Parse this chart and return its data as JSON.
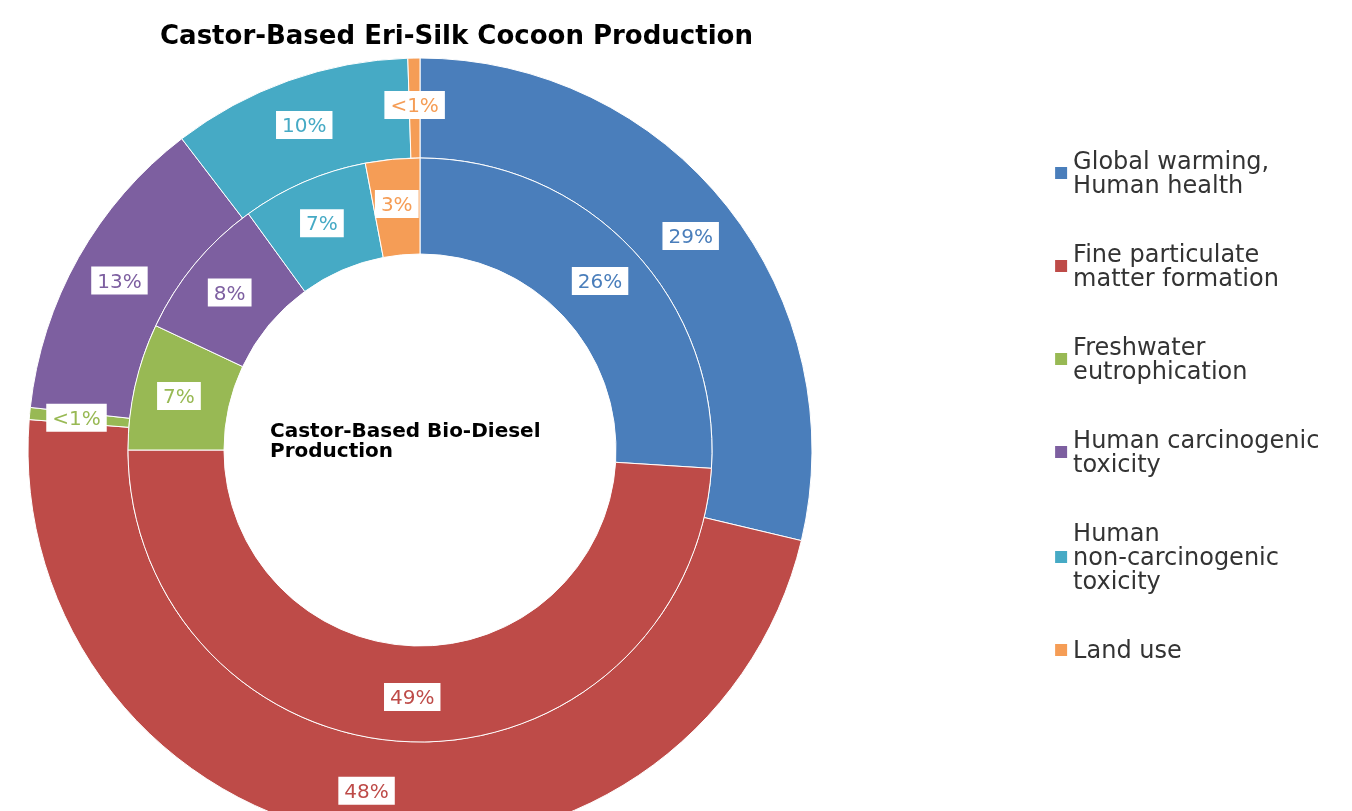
{
  "chart_data": {
    "type": "donut",
    "categories": [
      "Global warming, Human health",
      "Fine particulate matter formation",
      "Freshwater eutrophication",
      "Human carcinogenic toxicity",
      "Human non-carcinogenic toxicity",
      "Land use"
    ],
    "colors": [
      "#4a7ebb",
      "#be4b48",
      "#98b954",
      "#7d5fa0",
      "#46aac5",
      "#f59d56"
    ],
    "series": [
      {
        "name": "Castor-Based Eri-Silk Cocoon Production",
        "values": [
          29,
          48,
          0.5,
          13,
          10,
          0.5
        ],
        "value_labels": [
          "29%",
          "48%",
          "<1%",
          "13%",
          "10%",
          "<1%"
        ]
      },
      {
        "name": "Castor-Based Bio-Diesel Production",
        "values": [
          26,
          49,
          7,
          8,
          7,
          3
        ],
        "value_labels": [
          "26%",
          "49%",
          "7%",
          "8%",
          "7%",
          "3%"
        ]
      }
    ],
    "legend": "right"
  }
}
